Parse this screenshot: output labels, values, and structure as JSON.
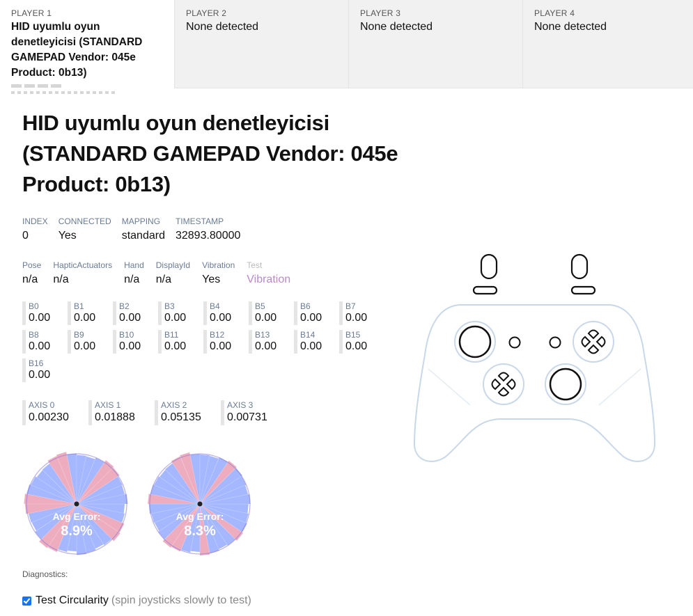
{
  "tabs": [
    {
      "label": "PLAYER 1",
      "name": "HID uyumlu oyun denetleyicisi (STANDARD GAMEPAD Vendor: 045e Product: 0b13)",
      "active": true
    },
    {
      "label": "PLAYER 2",
      "name": "None detected",
      "active": false
    },
    {
      "label": "PLAYER 3",
      "name": "None detected",
      "active": false
    },
    {
      "label": "PLAYER 4",
      "name": "None detected",
      "active": false
    }
  ],
  "gamepad": {
    "title": "HID uyumlu oyun denetleyicisi (STANDARD GAMEPAD Vendor: 045e Product: 0b13)",
    "info1": [
      {
        "label": "INDEX",
        "value": "0"
      },
      {
        "label": "CONNECTED",
        "value": "Yes"
      },
      {
        "label": "MAPPING",
        "value": "standard"
      },
      {
        "label": "TIMESTAMP",
        "value": "32893.80000"
      }
    ],
    "info2": [
      {
        "label": "Pose",
        "value": "n/a"
      },
      {
        "label": "HapticActuators",
        "value": "n/a"
      },
      {
        "label": "Hand",
        "value": "n/a"
      },
      {
        "label": "DisplayId",
        "value": "n/a"
      },
      {
        "label": "Vibration",
        "value": "Yes"
      },
      {
        "label": "Test",
        "value": "Vibration"
      }
    ],
    "buttons": [
      {
        "label": "B0",
        "value": "0.00"
      },
      {
        "label": "B1",
        "value": "0.00"
      },
      {
        "label": "B2",
        "value": "0.00"
      },
      {
        "label": "B3",
        "value": "0.00"
      },
      {
        "label": "B4",
        "value": "0.00"
      },
      {
        "label": "B5",
        "value": "0.00"
      },
      {
        "label": "B6",
        "value": "0.00"
      },
      {
        "label": "B7",
        "value": "0.00"
      },
      {
        "label": "B8",
        "value": "0.00"
      },
      {
        "label": "B9",
        "value": "0.00"
      },
      {
        "label": "B10",
        "value": "0.00"
      },
      {
        "label": "B11",
        "value": "0.00"
      },
      {
        "label": "B12",
        "value": "0.00"
      },
      {
        "label": "B13",
        "value": "0.00"
      },
      {
        "label": "B14",
        "value": "0.00"
      },
      {
        "label": "B15",
        "value": "0.00"
      },
      {
        "label": "B16",
        "value": "0.00"
      }
    ],
    "axes": [
      {
        "label": "AXIS 0",
        "value": "0.00230"
      },
      {
        "label": "AXIS 1",
        "value": "0.01888"
      },
      {
        "label": "AXIS 2",
        "value": "0.05135"
      },
      {
        "label": "AXIS 3",
        "value": "0.00731"
      }
    ],
    "circularity": [
      {
        "caption": "Avg Error:",
        "value": "8.9%"
      },
      {
        "caption": "Avg Error:",
        "value": "8.3%"
      }
    ],
    "diagnostics_label": "Diagnostics:",
    "test_circularity": {
      "label": "Test Circularity",
      "hint": "(spin joysticks slowly to test)",
      "checked": true
    }
  },
  "colors": {
    "accent": "#1a73e8",
    "label": "#6a7b94",
    "vibration_link": "#bb88cc",
    "controller_stroke": "#c8d8e8",
    "good_sector": "#5b7cff",
    "bad_sector": "#e06a8a"
  },
  "icons": {
    "controller": "gamepad-diagram-icon",
    "checkbox": "checkbox-checked-icon"
  }
}
